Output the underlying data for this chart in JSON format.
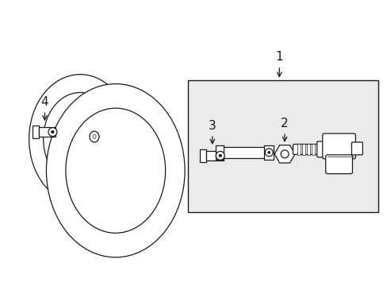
{
  "bg_color": "#ffffff",
  "line_color": "#1a1a1a",
  "box_fill": "#ebebeb",
  "label_1": "1",
  "label_2": "2",
  "label_3": "3",
  "label_4": "4",
  "font_size": 10,
  "lw": 0.9
}
